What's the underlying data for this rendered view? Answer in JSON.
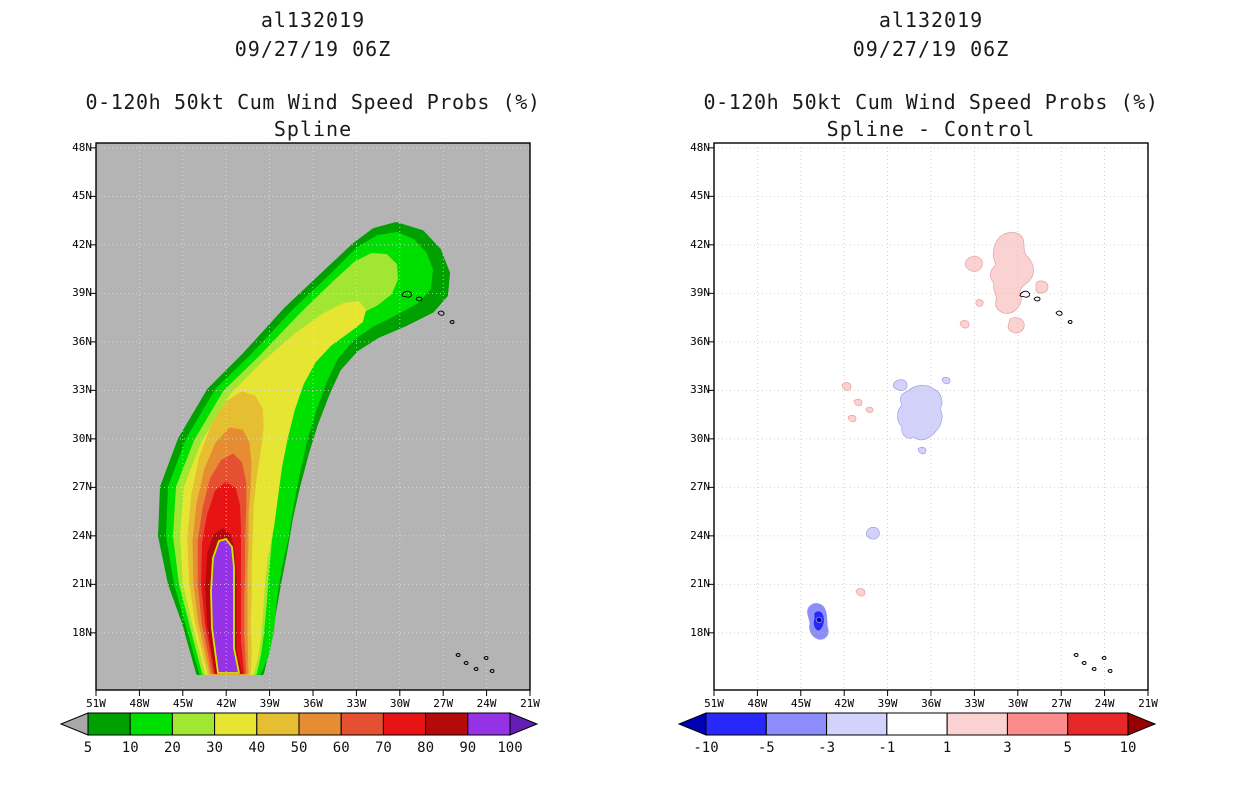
{
  "panels": {
    "left": {
      "storm_id": "al132019",
      "datetime": "09/27/19 06Z",
      "title": "0-120h 50kt Cum Wind Speed Probs (%)",
      "subtitle": "Spline",
      "map_background": "#b4b4b4"
    },
    "right": {
      "storm_id": "al132019",
      "datetime": "09/27/19 06Z",
      "title": "0-120h 50kt Cum Wind Speed Probs (%)",
      "subtitle": "Spline - Control",
      "map_background": "#ffffff"
    }
  },
  "axes": {
    "lat_labels": [
      "48N",
      "45N",
      "42N",
      "39N",
      "36N",
      "33N",
      "30N",
      "27N",
      "24N",
      "21N",
      "18N"
    ],
    "lon_labels": [
      "51W",
      "48W",
      "45W",
      "42W",
      "39W",
      "36W",
      "33W",
      "30W",
      "27W",
      "24W",
      "21W"
    ]
  },
  "colorbars": {
    "probs": {
      "tick_labels": [
        "5",
        "10",
        "20",
        "30",
        "40",
        "50",
        "60",
        "70",
        "80",
        "90",
        "100"
      ],
      "colors": [
        "#00a000",
        "#00e000",
        "#a0e632",
        "#e6e632",
        "#e6be32",
        "#e68c32",
        "#e65032",
        "#e61414",
        "#b40a0a",
        "#9632e6"
      ],
      "arrow_left": "#a8a8a8",
      "arrow_right": "#641eb4",
      "max_outline": "#d2e600"
    },
    "diff": {
      "tick_labels": [
        "-10",
        "-5",
        "-3",
        "-1",
        "1",
        "3",
        "5",
        "10"
      ],
      "colors": [
        "#2828fa",
        "#8c8cfa",
        "#d2d2fa",
        "#ffffff",
        "#fad2d2",
        "#fa8c8c",
        "#e62828"
      ],
      "arrow_left": "#0000b4",
      "arrow_right": "#960000"
    }
  },
  "chart_data": [
    {
      "type": "heatmap",
      "subtype": "filled-contour-probability-map",
      "panel": "left",
      "title": "al132019",
      "subtitle": "09/27/19 06Z",
      "plot_title": "0-120h 50kt Cum Wind Speed Probs (%)",
      "method": "Spline",
      "x_ticks": [
        "51W",
        "48W",
        "45W",
        "42W",
        "39W",
        "36W",
        "33W",
        "30W",
        "27W",
        "24W",
        "21W"
      ],
      "y_ticks": [
        "48N",
        "45N",
        "42N",
        "39N",
        "36N",
        "33N",
        "30N",
        "27N",
        "24N",
        "21N",
        "18N"
      ],
      "levels_percent": [
        5,
        10,
        20,
        30,
        40,
        50,
        60,
        70,
        80,
        90,
        100
      ],
      "level_colors": [
        "#00a000",
        "#00e000",
        "#a0e632",
        "#e6e632",
        "#e6be32",
        "#e68c32",
        "#e65032",
        "#e61414",
        "#b40a0a",
        "#9632e6"
      ],
      "grid": true,
      "legend_position": "bottom",
      "description": "Comma-shaped cumulative 50kt wind probability swath extending from about 42W 17N north then curving northeast to about 27W 40N; purple core (>90%) along 42-41W between 17N and 23.5N, values decreasing outward to the 5% contour at the swath edge."
    },
    {
      "type": "heatmap",
      "subtype": "filled-contour-difference-map",
      "panel": "right",
      "title": "al132019",
      "subtitle": "09/27/19 06Z",
      "plot_title": "0-120h 50kt Cum Wind Speed Probs (%)",
      "method": "Spline - Control",
      "x_ticks": [
        "51W",
        "48W",
        "45W",
        "42W",
        "39W",
        "36W",
        "33W",
        "30W",
        "27W",
        "24W",
        "21W"
      ],
      "y_ticks": [
        "48N",
        "45N",
        "42N",
        "39N",
        "36N",
        "33N",
        "30N",
        "27N",
        "24N",
        "21N",
        "18N"
      ],
      "levels": [
        -10,
        -5,
        -3,
        -1,
        1,
        3,
        5,
        10
      ],
      "level_colors": [
        "#2828fa",
        "#8c8cfa",
        "#d2d2fa",
        "#ffffff",
        "#fad2d2",
        "#fa8c8c",
        "#e62828"
      ],
      "grid": true,
      "legend_position": "bottom",
      "features": [
        {
          "sign": "positive",
          "range": "+1 to +3",
          "approx_location": "33W-28W, 37N-42.5N scattered blobs"
        },
        {
          "sign": "positive",
          "range": "+1 to +3",
          "approx_location": "42W-39.5W, 30.5N-33N small specks"
        },
        {
          "sign": "negative",
          "range": "-3 to -1",
          "approx_location": "38.5W-35W, 29.5N-33.5N cluster"
        },
        {
          "sign": "negative",
          "range": "-10 to -5",
          "approx_location": "small core near 43.5W, 19.5N"
        },
        {
          "sign": "negative",
          "range": "-3 to -1",
          "approx_location": "small blob near 40.5W, 24N"
        },
        {
          "sign": "positive",
          "range": "+1 to +3",
          "approx_location": "small speck near 40.5W, 21N"
        }
      ]
    }
  ]
}
